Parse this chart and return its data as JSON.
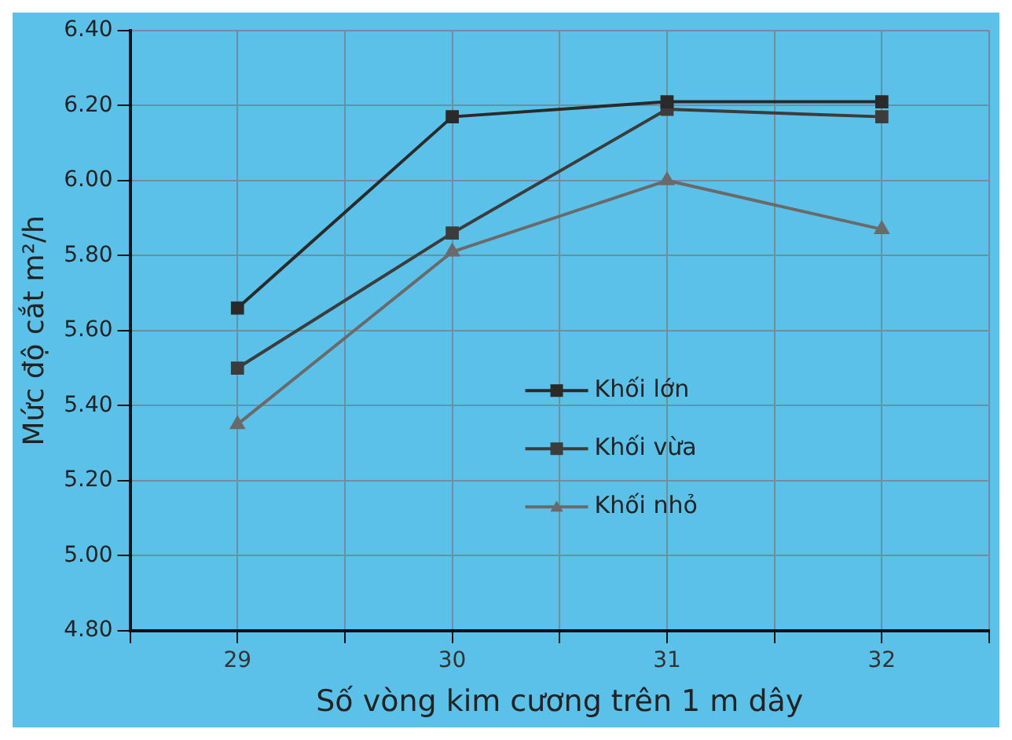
{
  "chart_data": {
    "type": "line",
    "xlabel": "Số vòng kim cương trên 1 m dây",
    "ylabel": "Mức độ cắt m²/h",
    "x": [
      29,
      30,
      31,
      32
    ],
    "xlim": [
      28.5,
      32.5
    ],
    "xticks": [
      {
        "value": 28.5,
        "label": null
      },
      29,
      {
        "value": 29.5,
        "label": null
      },
      30,
      {
        "value": 30.5,
        "label": null
      },
      31,
      {
        "value": 31.5,
        "label": null
      },
      32,
      {
        "value": 32.5,
        "label": null
      }
    ],
    "ylim": [
      4.8,
      6.4
    ],
    "yticks": [
      {
        "value": 4.8,
        "label": "4.80"
      },
      {
        "value": 5.0,
        "label": "5.00"
      },
      {
        "value": 5.2,
        "label": "5.20"
      },
      {
        "value": 5.4,
        "label": "5.40"
      },
      {
        "value": 5.6,
        "label": "5.60"
      },
      {
        "value": 5.8,
        "label": "5.80"
      },
      {
        "value": 6.0,
        "label": "6.00"
      },
      {
        "value": 6.2,
        "label": "6.20"
      },
      {
        "value": 6.4,
        "label": "6.40"
      }
    ],
    "series": [
      {
        "name": "Khối lớn",
        "color": "#2a2a2a",
        "marker": "square",
        "values": [
          5.66,
          6.17,
          6.21,
          6.21
        ]
      },
      {
        "name": "Khối vừa",
        "color": "#3c3c3c",
        "marker": "square",
        "values": [
          5.5,
          5.86,
          6.19,
          6.17
        ]
      },
      {
        "name": "Khối nhỏ",
        "color": "#6a6a6a",
        "marker": "triangle",
        "values": [
          5.35,
          5.81,
          6.0,
          5.87
        ]
      }
    ],
    "grid": true,
    "legend": "bottom right",
    "line_style": "solid"
  }
}
